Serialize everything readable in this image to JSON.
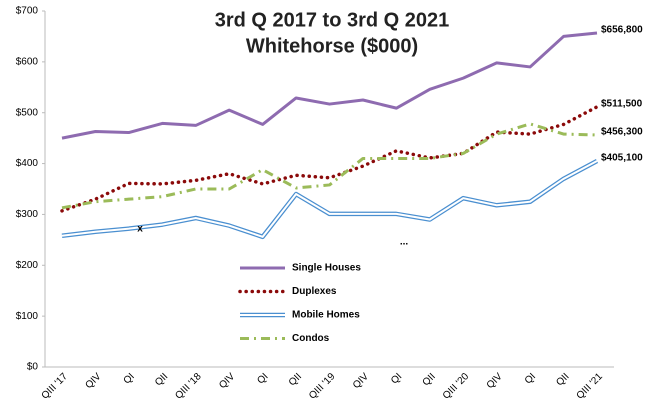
{
  "chart_data": {
    "type": "line",
    "title": [
      "3rd Q 2017 to 3rd Q 2021",
      "Whitehorse ($000)"
    ],
    "categories": [
      "QIII '17",
      "QIV",
      "QI",
      "QII",
      "QIII '18",
      "QIV",
      "QI",
      "QII",
      "QIII '19",
      "QIV",
      "QI",
      "QII",
      "QIII '20",
      "QIV",
      "QI",
      "QII",
      "QIII '21"
    ],
    "ylim": [
      0,
      700
    ],
    "yticks": [
      {
        "value": 0,
        "label": "$0"
      },
      {
        "value": 100,
        "label": "$100"
      },
      {
        "value": 200,
        "label": "$200"
      },
      {
        "value": 300,
        "label": "$300"
      },
      {
        "value": 400,
        "label": "$400"
      },
      {
        "value": 500,
        "label": "$500"
      },
      {
        "value": 600,
        "label": "$600"
      },
      {
        "value": 700,
        "label": "$700"
      }
    ],
    "grid": false,
    "series": [
      {
        "name": "Single Houses",
        "color": "#8e6bb0",
        "style": "solid",
        "values": [
          450,
          463,
          461,
          479,
          475,
          505,
          477,
          529,
          517,
          525,
          509,
          546,
          568,
          598,
          590,
          650,
          656.8
        ],
        "value_labels": [
          null,
          null,
          null,
          null,
          null,
          null,
          null,
          null,
          null,
          null,
          null,
          null,
          null,
          null,
          null,
          null,
          "$656,800"
        ]
      },
      {
        "name": "Duplexes",
        "color": "#8b0a0a",
        "style": "dotted",
        "values": [
          307,
          330,
          361,
          360,
          367,
          380,
          360,
          377,
          372,
          395,
          425,
          411,
          420,
          462,
          458,
          477,
          511.5
        ],
        "value_labels": [
          null,
          null,
          null,
          null,
          null,
          null,
          null,
          null,
          null,
          null,
          null,
          null,
          null,
          null,
          null,
          null,
          "$511,500"
        ]
      },
      {
        "name": "Mobile Homes",
        "color": "#4a8fd0",
        "style": "double",
        "values": [
          258,
          266,
          272,
          280,
          293,
          278,
          256,
          340,
          301,
          301,
          301,
          290,
          332,
          318,
          325,
          370,
          405.1
        ],
        "value_labels": [
          null,
          null,
          null,
          null,
          null,
          null,
          null,
          null,
          null,
          null,
          null,
          null,
          null,
          null,
          null,
          null,
          "$405,100"
        ]
      },
      {
        "name": "Condos",
        "color": "#9bbb59",
        "style": "dashdot",
        "values": [
          313,
          325,
          330,
          335,
          350,
          350,
          388,
          352,
          358,
          410,
          410,
          410,
          420,
          458,
          478,
          458,
          456.3
        ],
        "value_labels": [
          null,
          null,
          null,
          null,
          null,
          null,
          null,
          null,
          null,
          null,
          null,
          null,
          null,
          null,
          null,
          null,
          "$456,300"
        ]
      }
    ],
    "annotations": [
      "x",
      "..."
    ]
  }
}
